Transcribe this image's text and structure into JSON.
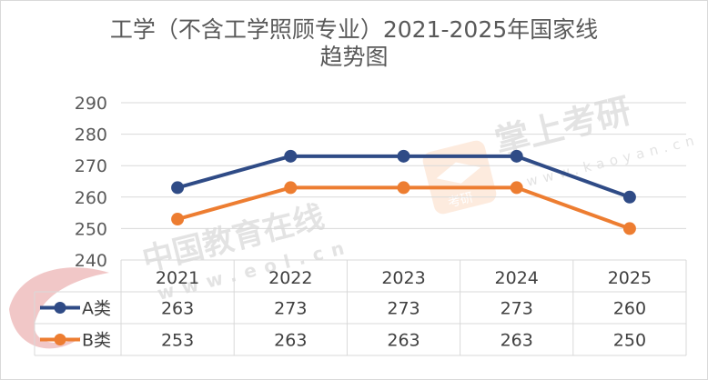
{
  "chart_data": {
    "type": "line",
    "title_line1": "工学（不含工学照顾专业）2021-2025年国家线",
    "title_line2": "趋势图",
    "categories": [
      "2021",
      "2022",
      "2023",
      "2024",
      "2025"
    ],
    "series": [
      {
        "name": "A类",
        "values": [
          263,
          273,
          273,
          273,
          260
        ],
        "color": "#2f4b86"
      },
      {
        "name": "B类",
        "values": [
          253,
          263,
          263,
          263,
          250
        ],
        "color": "#ed7d31"
      }
    ],
    "ylim": [
      240,
      290
    ],
    "yticks": [
      240,
      250,
      260,
      270,
      280,
      290
    ],
    "grid": true,
    "data_table": true
  },
  "watermarks": {
    "eol_cn": "中国教育在线",
    "eol_url": "www.eol.cn",
    "kaoyan_cn": "掌上考研",
    "kaoyan_url": "www.kaoyan.cn",
    "badge_text": "考研"
  }
}
